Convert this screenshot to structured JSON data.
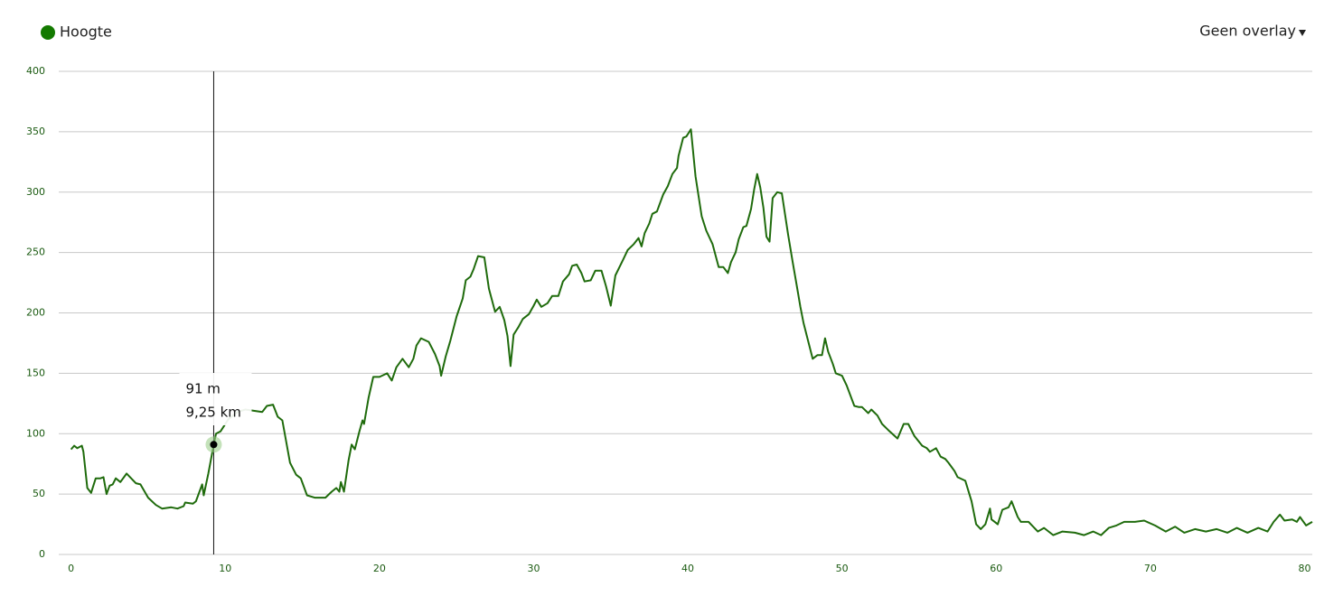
{
  "chart_data": {
    "type": "line",
    "series": [
      {
        "name": "Hoogte",
        "color": "#1f6b0c",
        "x": [
          0,
          0.2,
          0.4,
          0.7,
          0.8,
          1.05,
          1.3,
          1.6,
          1.9,
          2.1,
          2.3,
          2.5,
          2.7,
          2.9,
          3.2,
          3.6,
          4.2,
          4.5,
          5.0,
          5.5,
          5.9,
          6.5,
          6.9,
          7.3,
          7.4,
          7.9,
          8.1,
          8.5,
          8.6,
          8.9,
          9.25,
          9.4,
          9.7,
          10.2,
          10.8,
          11.3,
          11.8,
          12.4,
          12.7,
          13.1,
          13.4,
          13.7,
          14.2,
          14.6,
          14.9,
          15.3,
          15.8,
          16.5,
          16.9,
          17.2,
          17.4,
          17.5,
          17.7,
          18.0,
          18.2,
          18.4,
          18.7,
          18.9,
          19.0,
          19.3,
          19.6,
          20.0,
          20.5,
          20.8,
          21.1,
          21.5,
          21.9,
          22.2,
          22.4,
          22.7,
          23.2,
          23.6,
          23.9,
          24.0,
          24.3,
          24.6,
          25.0,
          25.4,
          25.6,
          25.9,
          26.1,
          26.4,
          26.8,
          27.1,
          27.5,
          27.8,
          28.1,
          28.3,
          28.5,
          28.7,
          29.0,
          29.3,
          29.7,
          30.0,
          30.2,
          30.5,
          30.9,
          31.2,
          31.6,
          31.9,
          32.3,
          32.5,
          32.8,
          33.1,
          33.3,
          33.7,
          34.0,
          34.4,
          34.7,
          35.0,
          35.3,
          35.8,
          36.1,
          36.5,
          36.8,
          37.0,
          37.2,
          37.5,
          37.7,
          38.0,
          38.4,
          38.7,
          39.0,
          39.3,
          39.4,
          39.7,
          39.9,
          40.2,
          40.5,
          40.9,
          41.2,
          41.6,
          42.0,
          42.3,
          42.6,
          42.8,
          43.1,
          43.3,
          43.6,
          43.8,
          44.1,
          44.3,
          44.5,
          44.7,
          44.9,
          45.1,
          45.3,
          45.5,
          45.8,
          46.1,
          46.5,
          46.8,
          47.1,
          47.3,
          47.5,
          47.7,
          48.1,
          48.4,
          48.7,
          48.9,
          49.1,
          49.4,
          49.6,
          50.0,
          50.3,
          50.8,
          51.1,
          51.3,
          51.7,
          51.9,
          52.3,
          52.6,
          53.0,
          53.6,
          54.0,
          54.3,
          54.7,
          55.2,
          55.5,
          55.7,
          56.1,
          56.4,
          56.7,
          56.9,
          57.3,
          57.5,
          58.0,
          58.4,
          58.7,
          59.0,
          59.3,
          59.6,
          59.7,
          60.1,
          60.4,
          60.8,
          61.0,
          61.4,
          61.6,
          62.1,
          62.7,
          63.1,
          63.7,
          64.3,
          65.1,
          65.7,
          66.3,
          66.8,
          67.3,
          67.8,
          68.3,
          69.0,
          69.6,
          70.3,
          71.0,
          71.6,
          72.2,
          72.9,
          73.6,
          74.3,
          75.0,
          75.6,
          76.3,
          77.0,
          77.6,
          78.0,
          78.4,
          78.7,
          79.2,
          79.5,
          79.7,
          80.1,
          80.5
        ],
        "values": [
          87,
          90,
          88,
          90,
          85,
          55,
          51,
          63,
          63,
          64,
          50,
          57,
          58,
          63,
          60,
          67,
          59,
          58,
          47,
          41,
          38,
          39,
          38,
          40,
          43,
          42,
          44,
          58,
          49,
          67,
          91,
          100,
          102,
          112,
          118,
          120,
          119,
          118,
          123,
          124,
          114,
          111,
          76,
          66,
          63,
          49,
          47,
          47,
          52,
          55,
          52,
          60,
          52,
          78,
          91,
          87,
          102,
          111,
          108,
          130,
          147,
          147,
          150,
          144,
          155,
          162,
          155,
          162,
          173,
          179,
          176,
          166,
          156,
          148,
          164,
          177,
          197,
          212,
          227,
          230,
          236,
          247,
          246,
          220,
          201,
          205,
          194,
          181,
          156,
          182,
          188,
          195,
          199,
          206,
          211,
          205,
          208,
          214,
          214,
          226,
          232,
          239,
          240,
          233,
          226,
          227,
          235,
          235,
          222,
          206,
          231,
          244,
          252,
          257,
          262,
          255,
          266,
          274,
          282,
          284,
          298,
          305,
          315,
          320,
          330,
          345,
          346,
          352,
          313,
          280,
          268,
          257,
          238,
          238,
          233,
          242,
          250,
          261,
          271,
          272,
          286,
          302,
          315,
          304,
          287,
          263,
          259,
          295,
          300,
          299,
          265,
          242,
          220,
          205,
          192,
          182,
          162,
          165,
          165,
          179,
          168,
          158,
          150,
          148,
          140,
          123,
          122,
          122,
          117,
          120,
          115,
          108,
          103,
          96,
          108,
          108,
          98,
          90,
          88,
          85,
          88,
          81,
          79,
          76,
          69,
          64,
          61,
          44,
          25,
          21,
          25,
          38,
          29,
          25,
          37,
          39,
          44,
          31,
          27,
          27,
          19,
          22,
          16,
          19,
          18,
          16,
          19,
          16,
          22,
          24,
          27,
          27,
          28,
          24,
          19,
          23,
          18,
          21,
          19,
          21,
          18,
          22,
          18,
          22,
          19,
          27,
          33,
          28,
          29,
          27,
          31,
          24,
          27
        ]
      }
    ],
    "xlim": [
      -0.8,
      80.5
    ],
    "ylim": [
      0,
      400
    ],
    "xticks": [
      0,
      10,
      20,
      30,
      40,
      50,
      60,
      70,
      80
    ],
    "yticks": [
      0,
      50,
      100,
      150,
      200,
      250,
      300,
      350,
      400
    ],
    "grid": true,
    "tooltip": {
      "x": 9.25,
      "y": 91,
      "y_label": "91 m",
      "x_label": "9,25 km"
    },
    "overlay_menu": "Geen overlay"
  }
}
